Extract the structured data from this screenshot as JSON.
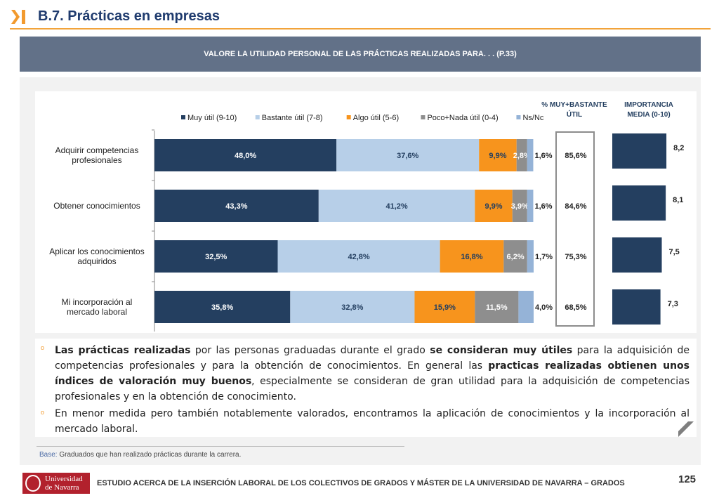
{
  "header": {
    "title": "B.7. Prácticas en empresas",
    "question": "VALORE LA UTILIDAD PERSONAL DE LAS PRÁCTICAS REALIZADAS PARA. . . (P.33)"
  },
  "colors": {
    "muy_util": "#243f60",
    "bastante_util": "#b7cfe8",
    "algo_util": "#f7941d",
    "poco_nada": "#8e8e8e",
    "ns_nc": "#95b3d7",
    "accent": "#f2a33a"
  },
  "chart_data": {
    "type": "bar",
    "orientation": "horizontal-stacked-100",
    "categories": [
      "Adquirir competencias profesionales",
      "Obtener conocimientos",
      "Aplicar los conocimientos adquiridos",
      "Mi incorporación al mercado laboral"
    ],
    "series": [
      {
        "name": "Muy útil (9-10)",
        "values": [
          48.0,
          43.3,
          32.5,
          35.8
        ],
        "labels": [
          "48,0%",
          "43,3%",
          "32,5%",
          "35,8%"
        ]
      },
      {
        "name": "Bastante útil (7-8)",
        "values": [
          37.6,
          41.2,
          42.8,
          32.8
        ],
        "labels": [
          "37,6%",
          "41,2%",
          "42,8%",
          "32,8%"
        ]
      },
      {
        "name": "Algo útil (5-6)",
        "values": [
          9.9,
          9.9,
          16.8,
          15.9
        ],
        "labels": [
          "9,9%",
          "9,9%",
          "16,8%",
          "15,9%"
        ]
      },
      {
        "name": "Poco+Nada útil (0-4)",
        "values": [
          2.8,
          3.9,
          6.2,
          11.5
        ],
        "labels": [
          "2,8%",
          "3,9%",
          "6,2%",
          "11,5%"
        ]
      },
      {
        "name": "Ns/Nc",
        "values": [
          1.6,
          1.6,
          1.7,
          4.0
        ],
        "labels": [
          "1,6%",
          "1,6%",
          "1,7%",
          "4,0%"
        ]
      }
    ],
    "legend_position": "top",
    "muy_bastante": {
      "header_line1": "% MUY+BASTANTE",
      "header_line2": "ÚTIL",
      "values": [
        "85,6%",
        "84,6%",
        "75,3%",
        "68,5%"
      ]
    },
    "importancia": {
      "header_line1": "IMPORTANCIA",
      "header_line2": "MEDIA (0-10)",
      "values": [
        8.2,
        8.1,
        7.5,
        7.3
      ],
      "labels": [
        "8,2",
        "8,1",
        "7,5",
        "7,3"
      ]
    }
  },
  "summary": {
    "bullet1": {
      "b1": "Las prácticas realizadas",
      "t1": " por las personas graduadas durante el grado ",
      "b2": "se consideran muy útiles",
      "t2": " para la adquisición de competencias profesionales y para la obtención de conocimientos. En general las ",
      "b3": "practicas realizadas obtienen unos índices de valoración muy buenos",
      "t3": ", especialmente se consideran de gran utilidad para la adquisición de competencias profesionales y en la obtención de conocimiento."
    },
    "bullet2": "En menor medida pero también notablemente valorados, encontramos la aplicación de conocimientos y la incorporación al mercado laboral.",
    "bullet_mark": "o"
  },
  "base": {
    "label": "Base:",
    "text": " Graduados que han realizado prácticas durante la carrera."
  },
  "footer": {
    "logo_line1": "Universidad",
    "logo_line2": "de Navarra",
    "text": "ESTUDIO ACERCA DE LA INSERCIÓN LABORAL DE LOS COLECTIVOS DE GRADOS Y MÁSTER DE LA UNIVERSIDAD DE NAVARRA – GRADOS",
    "page": "125"
  }
}
